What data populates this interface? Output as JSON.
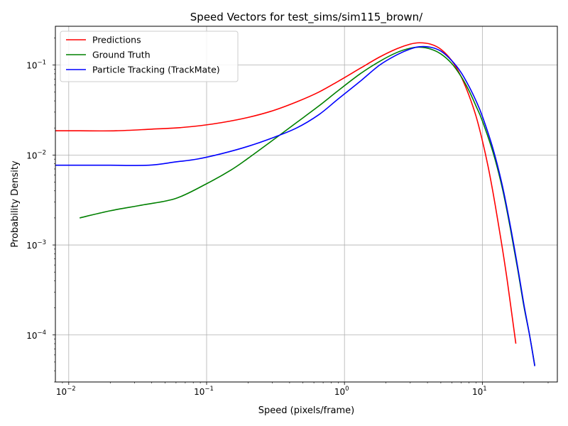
{
  "chart_data": {
    "type": "line",
    "title": "Speed Vectors for test_sims/sim115_brown/",
    "xlabel": "Speed (pixels/frame)",
    "ylabel": "Probability Density",
    "xscale": "log",
    "yscale": "log",
    "xlim": [
      0.008,
      35
    ],
    "ylim": [
      3e-05,
      0.27
    ],
    "grid": true,
    "legend_position": "upper-left",
    "x_ticks": [
      {
        "value": 0.01,
        "base": "10",
        "exp": "−2"
      },
      {
        "value": 0.1,
        "base": "10",
        "exp": "−1"
      },
      {
        "value": 1,
        "base": "10",
        "exp": "0"
      },
      {
        "value": 10,
        "base": "10",
        "exp": "1"
      }
    ],
    "y_ticks": [
      {
        "value": 0.0001,
        "base": "10",
        "exp": "−4"
      },
      {
        "value": 0.001,
        "base": "10",
        "exp": "−3"
      },
      {
        "value": 0.01,
        "base": "10",
        "exp": "−2"
      },
      {
        "value": 0.1,
        "base": "10",
        "exp": "−1"
      }
    ],
    "series": [
      {
        "name": "Predictions",
        "color": "#ff0000",
        "points": [
          [
            0.008,
            0.0186
          ],
          [
            0.012,
            0.0186
          ],
          [
            0.022,
            0.0186
          ],
          [
            0.04,
            0.0194
          ],
          [
            0.06,
            0.02
          ],
          [
            0.09,
            0.0212
          ],
          [
            0.13,
            0.023
          ],
          [
            0.2,
            0.0262
          ],
          [
            0.3,
            0.031
          ],
          [
            0.45,
            0.039
          ],
          [
            0.65,
            0.05
          ],
          [
            0.9,
            0.066
          ],
          [
            1.3,
            0.092
          ],
          [
            1.8,
            0.123
          ],
          [
            2.4,
            0.152
          ],
          [
            3.0,
            0.171
          ],
          [
            3.5,
            0.177
          ],
          [
            4.2,
            0.171
          ],
          [
            5.0,
            0.15
          ],
          [
            6.0,
            0.112
          ],
          [
            7.0,
            0.075
          ],
          [
            8.0,
            0.046
          ],
          [
            9.0,
            0.027
          ],
          [
            10.0,
            0.0145
          ],
          [
            11.0,
            0.0075
          ],
          [
            12.0,
            0.0037
          ],
          [
            13.0,
            0.0018
          ],
          [
            14.0,
            0.0009
          ],
          [
            15.0,
            0.00045
          ],
          [
            16.0,
            0.00022
          ],
          [
            17.5,
            8e-05
          ]
        ]
      },
      {
        "name": "Ground Truth",
        "color": "#008000",
        "points": [
          [
            0.012,
            0.002
          ],
          [
            0.02,
            0.0024
          ],
          [
            0.035,
            0.0028
          ],
          [
            0.06,
            0.0033
          ],
          [
            0.1,
            0.0048
          ],
          [
            0.15,
            0.0068
          ],
          [
            0.2,
            0.0092
          ],
          [
            0.3,
            0.0145
          ],
          [
            0.45,
            0.023
          ],
          [
            0.65,
            0.035
          ],
          [
            0.9,
            0.052
          ],
          [
            1.3,
            0.08
          ],
          [
            1.8,
            0.11
          ],
          [
            2.4,
            0.138
          ],
          [
            3.0,
            0.154
          ],
          [
            3.5,
            0.158
          ],
          [
            4.2,
            0.151
          ],
          [
            5.0,
            0.133
          ],
          [
            6.0,
            0.104
          ],
          [
            7.0,
            0.075
          ],
          [
            8.0,
            0.052
          ],
          [
            9.0,
            0.035
          ],
          [
            10.0,
            0.024
          ],
          [
            12.0,
            0.0105
          ],
          [
            14.0,
            0.0042
          ],
          [
            16.0,
            0.0015
          ],
          [
            18.0,
            0.00055
          ],
          [
            20.0,
            0.00021
          ],
          [
            22.0,
            0.0001
          ],
          [
            24.0,
            4.6e-05
          ]
        ]
      },
      {
        "name": "Particle Tracking (TrackMate)",
        "color": "#0000ff",
        "points": [
          [
            0.008,
            0.0077
          ],
          [
            0.012,
            0.0077
          ],
          [
            0.02,
            0.0077
          ],
          [
            0.038,
            0.0077
          ],
          [
            0.06,
            0.0084
          ],
          [
            0.085,
            0.009
          ],
          [
            0.13,
            0.0104
          ],
          [
            0.2,
            0.0125
          ],
          [
            0.3,
            0.0155
          ],
          [
            0.45,
            0.02
          ],
          [
            0.65,
            0.028
          ],
          [
            0.9,
            0.042
          ],
          [
            1.3,
            0.066
          ],
          [
            1.8,
            0.1
          ],
          [
            2.4,
            0.13
          ],
          [
            3.0,
            0.151
          ],
          [
            3.5,
            0.16
          ],
          [
            4.2,
            0.158
          ],
          [
            5.0,
            0.143
          ],
          [
            6.0,
            0.112
          ],
          [
            7.0,
            0.083
          ],
          [
            8.0,
            0.058
          ],
          [
            9.0,
            0.04
          ],
          [
            10.0,
            0.027
          ],
          [
            12.0,
            0.0115
          ],
          [
            14.0,
            0.0045
          ],
          [
            16.0,
            0.0016
          ],
          [
            18.0,
            0.00058
          ],
          [
            20.0,
            0.00022
          ],
          [
            22.0,
            0.0001
          ],
          [
            24.0,
            4.5e-05
          ]
        ]
      }
    ]
  }
}
